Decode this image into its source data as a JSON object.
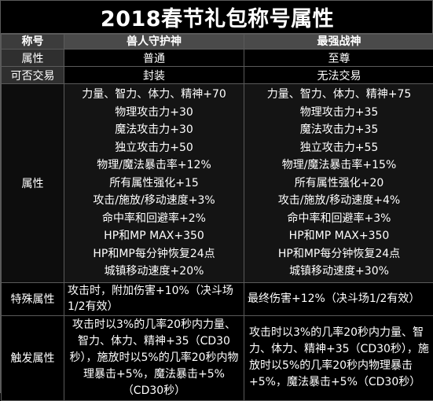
{
  "title": "2018春节礼包称号属性",
  "header": {
    "col0": "称号",
    "col1": "兽人守护神",
    "col2": "最强战神"
  },
  "rows": {
    "grade": {
      "label": "属性",
      "col1": "普通",
      "col2": "至尊"
    },
    "trade": {
      "label": "可否交易",
      "col1": "封装",
      "col2": "无法交易"
    },
    "attrs": {
      "label": "属性",
      "col1": [
        "力量、智力、体力、精神+70",
        "物理攻击力+30",
        "魔法攻击力+30",
        "独立攻击力+50",
        "物理/魔法暴击率+12%",
        "所有属性强化+15",
        "攻击/施放/移动速度+3%",
        "命中率和回避率+2%",
        "HP和MP MAX+350",
        "HP和MP每分钟恢复24点",
        "城镇移动速度+20%"
      ],
      "col2": [
        "力量、智力、体力、精神+75",
        "物理攻击力+35",
        "魔法攻击力+35",
        "独立攻击力+55",
        "物理/魔法暴击率+15%",
        "所有属性强化+20",
        "攻击/施放/移动速度+4%",
        "命中率和回避率+3%",
        "HP和MP MAX+350",
        "HP和MP每分钟恢复24点",
        "城镇移动速度+30%"
      ]
    },
    "special": {
      "label": "特殊属性",
      "col1": "攻击时，附加伤害+10%（决斗场1/2有效）",
      "col2": "最终伤害+12%（决斗场1/2有效）"
    },
    "trigger": {
      "label": "触发属性",
      "col1": "攻击时以3%的几率20秒内力量、智力、体力、精神+35（CD30秒），施放时以5%的几率20秒内物理暴击+5%，魔法暴击+5%（CD30秒）",
      "col2": "攻击时以3%的几率20秒内力量、智力、体力、精神+35（CD30秒），施放时以5%的几率20秒内物理暴击+5%，魔法暴击+5%（CD30秒）"
    }
  }
}
